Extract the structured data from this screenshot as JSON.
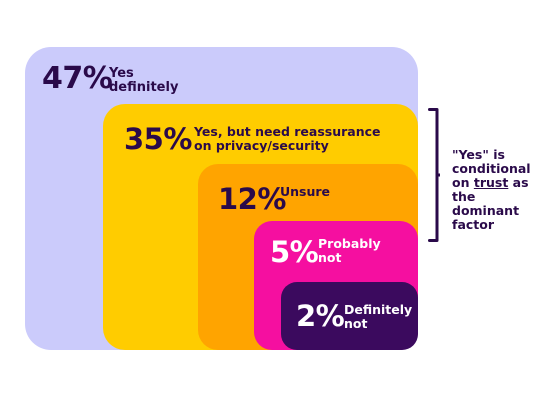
{
  "colors": {
    "dark": "#2a0a4a",
    "white": "#ffffff",
    "levels": [
      "#cbcbfb",
      "#ffcc00",
      "#ffa400",
      "#f50fa0",
      "#3b0a5e"
    ]
  },
  "chart_data": {
    "type": "nested-area",
    "title": "",
    "items": [
      {
        "value": 47,
        "pct": "47%",
        "label": "Yes definitely"
      },
      {
        "value": 35,
        "pct": "35%",
        "label": "Yes, but need reassurance on privacy/security"
      },
      {
        "value": 12,
        "pct": "12%",
        "label": "Unsure"
      },
      {
        "value": 5,
        "pct": "5%",
        "label": "Probably not"
      },
      {
        "value": 2,
        "pct": "2%",
        "label": "Definitely not"
      }
    ],
    "annotation": {
      "before": "\"Yes\" is conditional on ",
      "emph": "trust",
      "after": " as the dominant factor",
      "spans": "Yes, but need reassurance on privacy/security"
    }
  }
}
